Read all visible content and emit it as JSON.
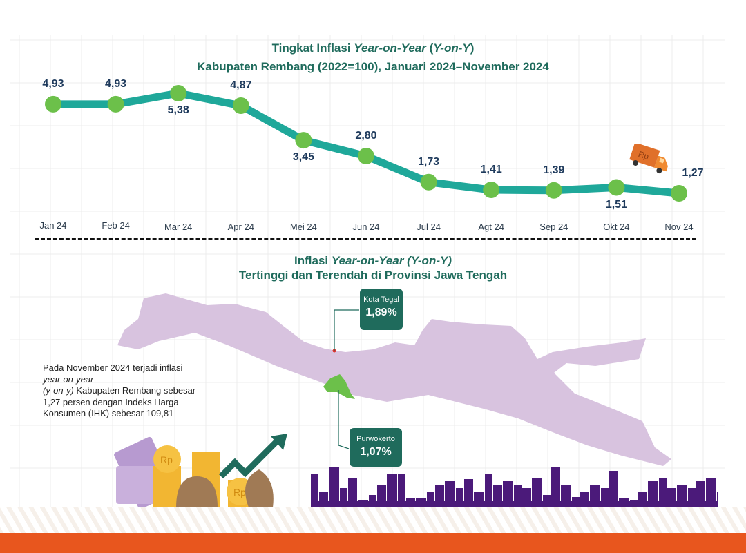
{
  "chart_data": {
    "type": "line",
    "title": "Tingkat Inflasi Year-on-Year (Y-on-Y)",
    "subtitle": "Kabupaten Rembang (2022=100), Januari 2024–November 2024",
    "categories": [
      "Jan 24",
      "Feb 24",
      "Mar 24",
      "Apr 24",
      "Mei 24",
      "Jun 24",
      "Jul 24",
      "Agt 24",
      "Sep 24",
      "Okt 24",
      "Nov 24"
    ],
    "values": [
      4.93,
      4.93,
      5.38,
      4.87,
      3.45,
      2.8,
      1.73,
      1.41,
      1.39,
      1.51,
      1.27
    ],
    "value_labels": [
      "4,93",
      "4,93",
      "5,38",
      "4,87",
      "3,45",
      "2,80",
      "1,73",
      "1,41",
      "1,39",
      "1,51",
      "1,27"
    ],
    "ylim": [
      0.9,
      5.6
    ],
    "grid": true,
    "colors": {
      "line": "#1fa89a",
      "marker": "#6cc04a",
      "label": "#1e3a5c"
    }
  },
  "title_parts": {
    "t1a": "Tingkat Inflasi ",
    "t1b": "Year-on-Year",
    "t1c": " (",
    "t1d": "Y-on-Y",
    "t1e": ")"
  },
  "map_section": {
    "title_a": "Inflasi ",
    "title_b": "Year-on-Year (Y-on-Y)",
    "subtitle": "Tertinggi dan Terendah di Provinsi Jawa Tengah",
    "highest": {
      "name": "Kota Tegal",
      "value": "1,89%"
    },
    "lowest": {
      "name": "Purwokerto",
      "value": "1,07%"
    },
    "colors": {
      "map": "#d8c3df",
      "callout": "#1f6b5c",
      "lowest_region": "#6cc04a",
      "highest_marker": "#e0302a",
      "skyline": "#4b1a7a"
    }
  },
  "description": {
    "p1": "Pada November 2024 terjadi inflasi ",
    "p2": "year-on-year",
    "p3": "(y-on-y)",
    "p4": " Kabupaten Rembang sebesar 1,27 persen dengan Indeks Harga Konsumen (IHK) sebesar 109,81"
  },
  "icons": [
    "delivery-truck-icon",
    "money-bills-icon",
    "coins-icon",
    "money-bag-icon",
    "trend-arrow-icon"
  ],
  "coin_label": "Rp"
}
